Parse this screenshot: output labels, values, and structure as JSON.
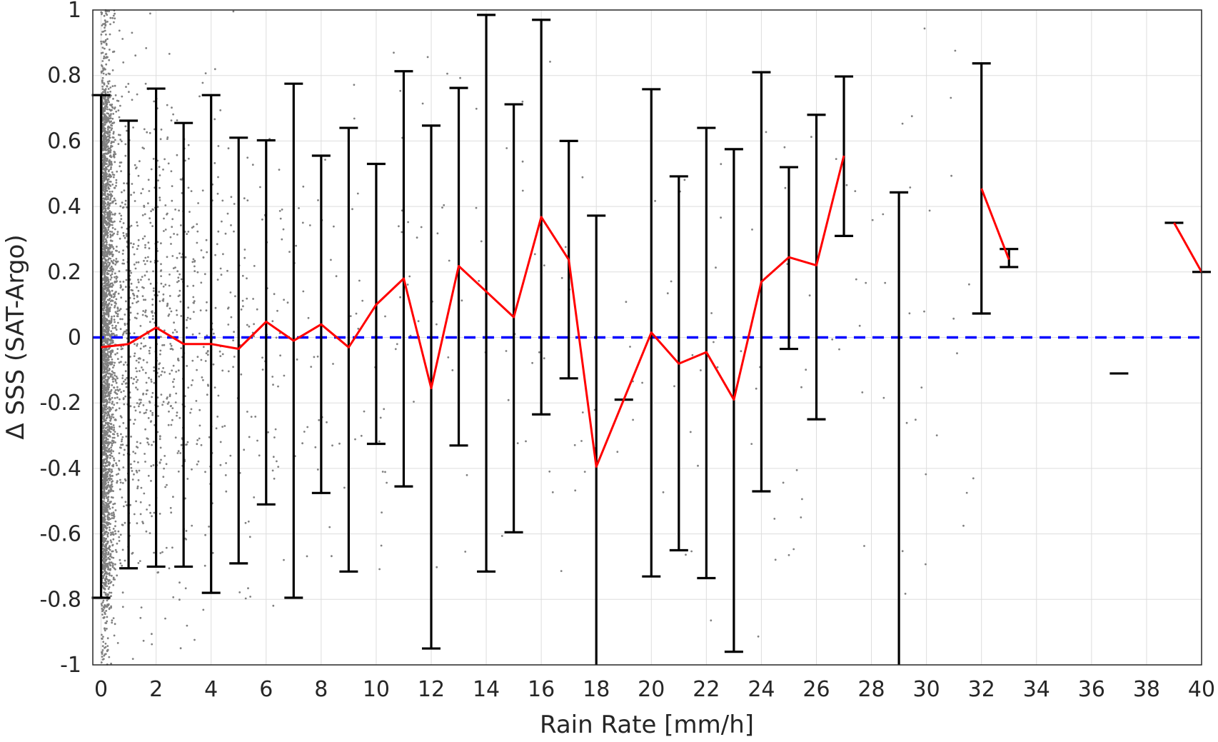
{
  "chart_data": {
    "type": "scatter",
    "title": "",
    "xlabel": "Rain Rate [mm/h]",
    "ylabel": "Δ SSS (SAT-Argo)",
    "xlim": [
      -0.3,
      40
    ],
    "ylim": [
      -1,
      1
    ],
    "xticks": [
      0,
      2,
      4,
      6,
      8,
      10,
      12,
      14,
      16,
      18,
      20,
      22,
      24,
      26,
      28,
      30,
      32,
      34,
      36,
      38,
      40
    ],
    "yticks": [
      -1,
      -0.8,
      -0.6,
      -0.4,
      -0.2,
      0,
      0.2,
      0.4,
      0.6,
      0.8,
      1
    ],
    "ytick_labels": [
      "-1",
      "-0.8",
      "-0.6",
      "-0.4",
      "-0.2",
      "0",
      "0.2",
      "0.4",
      "0.6",
      "0.8",
      "1"
    ],
    "grid": true,
    "reference_line": {
      "y": 0,
      "style": "dashed",
      "color": "#0000ff"
    },
    "colors": {
      "scatter": "#808080",
      "mean_line": "#ff0000",
      "error_bars": "#000000",
      "reference": "#0000ff",
      "grid": "#dddddd",
      "axes": "#262626"
    },
    "scatter_description": "Dense cloud of grey individual difference points, concentrated near rain rate 0 and thinning with increasing rain rate.",
    "error_bars": [
      {
        "x": 0,
        "low": -0.795,
        "high": 0.74
      },
      {
        "x": 1,
        "low": -0.705,
        "high": 0.662
      },
      {
        "x": 2,
        "low": -0.7,
        "high": 0.76
      },
      {
        "x": 3,
        "low": -0.7,
        "high": 0.655
      },
      {
        "x": 4,
        "low": -0.78,
        "high": 0.74
      },
      {
        "x": 5,
        "low": -0.69,
        "high": 0.61
      },
      {
        "x": 6,
        "low": -0.51,
        "high": 0.602
      },
      {
        "x": 7,
        "low": -0.795,
        "high": 0.775
      },
      {
        "x": 8,
        "low": -0.475,
        "high": 0.555
      },
      {
        "x": 9,
        "low": -0.715,
        "high": 0.64
      },
      {
        "x": 10,
        "low": -0.325,
        "high": 0.53
      },
      {
        "x": 11,
        "low": -0.455,
        "high": 0.813
      },
      {
        "x": 12,
        "low": -0.95,
        "high": 0.647
      },
      {
        "x": 13,
        "low": -0.33,
        "high": 0.762
      },
      {
        "x": 14,
        "low": -0.715,
        "high": 0.985
      },
      {
        "x": 15,
        "low": -0.595,
        "high": 0.712
      },
      {
        "x": 16,
        "low": -0.235,
        "high": 0.97
      },
      {
        "x": 17,
        "low": -0.125,
        "high": 0.6
      },
      {
        "x": 18,
        "low": -1.0,
        "high": 0.372
      },
      {
        "x": 19,
        "low": -0.19,
        "high": -0.19
      },
      {
        "x": 20,
        "low": -0.73,
        "high": 0.758
      },
      {
        "x": 21,
        "low": -0.65,
        "high": 0.492
      },
      {
        "x": 22,
        "low": -0.735,
        "high": 0.64
      },
      {
        "x": 23,
        "low": -0.96,
        "high": 0.575
      },
      {
        "x": 24,
        "low": -0.47,
        "high": 0.81
      },
      {
        "x": 25,
        "low": -0.035,
        "high": 0.52
      },
      {
        "x": 26,
        "low": -0.25,
        "high": 0.68
      },
      {
        "x": 27,
        "low": 0.31,
        "high": 0.797
      },
      {
        "x": 29,
        "low": -1.0,
        "high": 0.443
      },
      {
        "x": 32,
        "low": 0.073,
        "high": 0.837
      },
      {
        "x": 33,
        "low": 0.215,
        "high": 0.27
      },
      {
        "x": 37,
        "low": -0.11,
        "high": -0.11
      },
      {
        "x": 39,
        "low": 0.35,
        "high": 0.35
      },
      {
        "x": 40,
        "low": 0.2,
        "high": 0.2
      }
    ],
    "series": [
      {
        "name": "",
        "segments": [
          [
            [
              0,
              -0.03
            ],
            [
              1,
              -0.02
            ],
            [
              2,
              0.03
            ],
            [
              3,
              -0.02
            ],
            [
              4,
              -0.02
            ],
            [
              5,
              -0.035
            ],
            [
              6,
              0.048
            ],
            [
              7,
              -0.01
            ],
            [
              8,
              0.04
            ],
            [
              9,
              -0.03
            ],
            [
              10,
              0.1
            ],
            [
              11,
              0.18
            ],
            [
              12,
              -0.155
            ],
            [
              13,
              0.218
            ],
            [
              14,
              0.14
            ],
            [
              15,
              0.062
            ],
            [
              16,
              0.368
            ],
            [
              17,
              0.237
            ],
            [
              18,
              -0.395
            ],
            [
              19,
              -0.19
            ],
            [
              20,
              0.015
            ],
            [
              21,
              -0.08
            ],
            [
              22,
              -0.045
            ],
            [
              23,
              -0.19
            ],
            [
              24,
              0.17
            ],
            [
              25,
              0.245
            ],
            [
              26,
              0.22
            ],
            [
              27,
              0.555
            ]
          ],
          [
            [
              32,
              0.455
            ],
            [
              33,
              0.238
            ]
          ],
          [
            [
              39,
              0.35
            ],
            [
              40,
              0.2
            ]
          ]
        ]
      }
    ]
  }
}
